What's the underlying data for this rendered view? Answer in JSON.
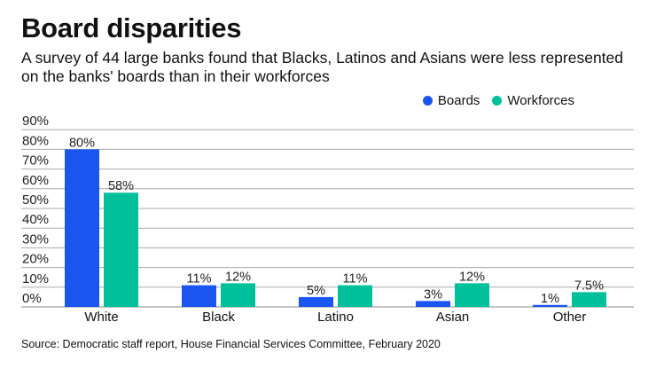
{
  "title": "Board disparities",
  "subtitle": "A survey of 44 large banks found that Blacks, Latinos and Asians were less represented on the banks' boards than in their workforces",
  "source": "Source: Democratic staff report, House Financial Services Committee, February 2020",
  "colors": {
    "Boards": "#1a55f0",
    "Workforces": "#00c09b"
  },
  "chart_data": {
    "type": "bar",
    "title": "Board disparities",
    "categories": [
      "White",
      "Black",
      "Latino",
      "Asian",
      "Other"
    ],
    "series": [
      {
        "name": "Boards",
        "values": [
          80,
          11,
          5,
          3,
          1
        ],
        "labels": [
          "80%",
          "11%",
          "5%",
          "3%",
          "1%"
        ]
      },
      {
        "name": "Workforces",
        "values": [
          58,
          12,
          11,
          12,
          7.5
        ],
        "labels": [
          "58%",
          "12%",
          "11%",
          "12%",
          "7.5%"
        ]
      }
    ],
    "yticks": [
      "0%",
      "10%",
      "20%",
      "30%",
      "40%",
      "50%",
      "60%",
      "70%",
      "80%",
      "90%"
    ],
    "ylim": [
      0,
      90
    ],
    "xlabel": "",
    "ylabel": "",
    "grid": true,
    "legend": "top-right"
  }
}
